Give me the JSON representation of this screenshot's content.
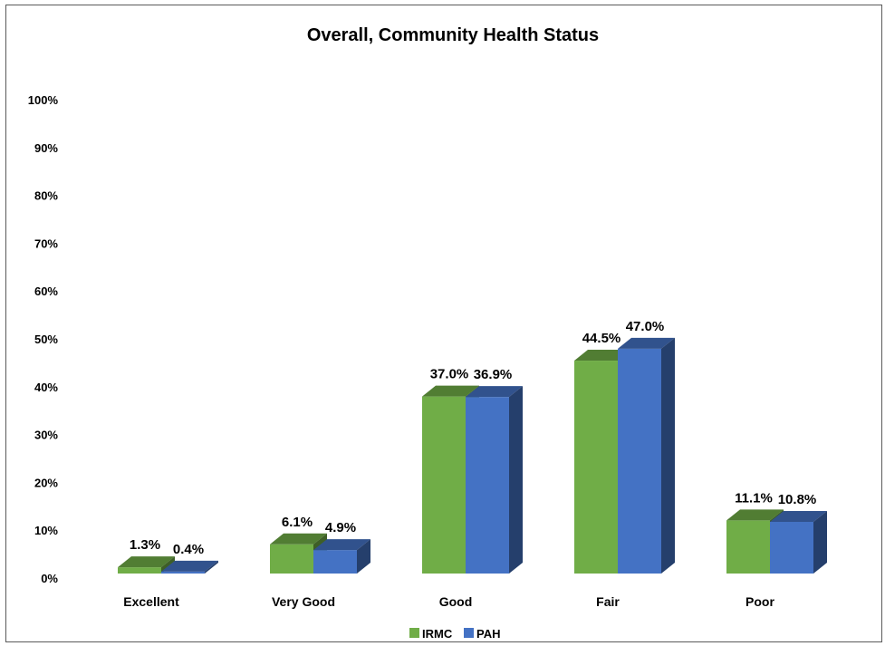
{
  "chart_data": {
    "type": "bar",
    "title": "Overall, Community Health Status",
    "categories": [
      "Excellent",
      "Very Good",
      "Good",
      "Fair",
      "Poor"
    ],
    "series": [
      {
        "name": "IRMC",
        "values": [
          1.3,
          6.1,
          37.0,
          44.5,
          11.1
        ],
        "labels": [
          "1.3%",
          "6.1%",
          "37.0%",
          "44.5%",
          "11.1%"
        ],
        "color": "#70AD47"
      },
      {
        "name": "PAH",
        "values": [
          0.4,
          4.9,
          36.9,
          47.0,
          10.8
        ],
        "labels": [
          "0.4%",
          "4.9%",
          "36.9%",
          "47.0%",
          "10.8%"
        ],
        "color": "#4472C4"
      }
    ],
    "yticks": [
      "0%",
      "10%",
      "20%",
      "30%",
      "40%",
      "50%",
      "60%",
      "70%",
      "80%",
      "90%",
      "100%"
    ],
    "ylim": [
      0,
      100
    ],
    "xlabel": "",
    "ylabel": "",
    "grid": false,
    "legend_position": "bottom",
    "style": "3d-clustered-column"
  }
}
